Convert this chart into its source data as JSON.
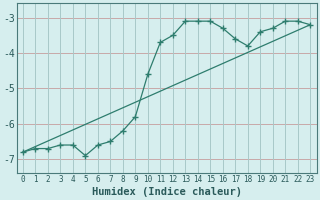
{
  "xlabel": "Humidex (Indice chaleur)",
  "ylabel": "",
  "background_color": "#d6eeee",
  "grid_color_h": "#c8a8a8",
  "grid_color_v": "#a8c8c8",
  "line_color": "#2e7d6e",
  "xlim": [
    -0.5,
    23.5
  ],
  "ylim": [
    -7.4,
    -2.6
  ],
  "yticks": [
    -7,
    -6,
    -5,
    -4,
    -3
  ],
  "xticks": [
    0,
    1,
    2,
    3,
    4,
    5,
    6,
    7,
    8,
    9,
    10,
    11,
    12,
    13,
    14,
    15,
    16,
    17,
    18,
    19,
    20,
    21,
    22,
    23
  ],
  "curve1_x": [
    0,
    1,
    2,
    3,
    4,
    5,
    6,
    7,
    8,
    9,
    10,
    11,
    12,
    13,
    14,
    15,
    16,
    17,
    18,
    19,
    20,
    21,
    22,
    23
  ],
  "curve1_y": [
    -6.8,
    -6.7,
    -6.7,
    -6.6,
    -6.6,
    -6.9,
    -6.6,
    -6.5,
    -6.2,
    -5.8,
    -4.6,
    -3.7,
    -3.5,
    -3.1,
    -3.1,
    -3.1,
    -3.3,
    -3.6,
    -3.8,
    -3.4,
    -3.3,
    -3.1,
    -3.1,
    -3.2
  ],
  "curve2_x": [
    0,
    23
  ],
  "curve2_y": [
    -6.8,
    -3.2
  ]
}
